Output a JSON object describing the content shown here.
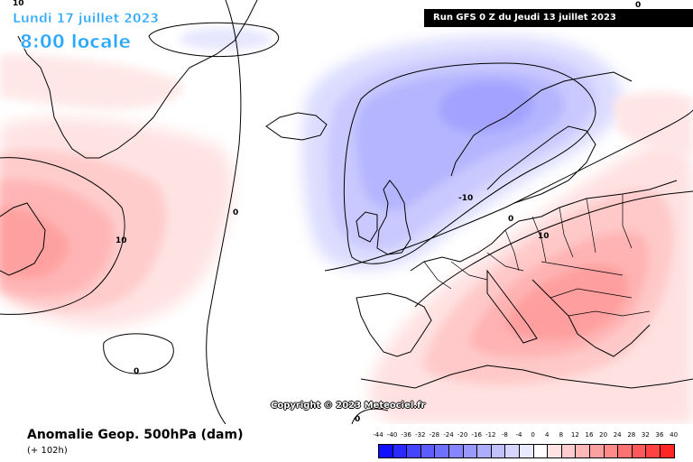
{
  "header": {
    "date_line": "Lundi 17 juillet 2023",
    "time_line": "8:00 locale",
    "run_info": "Run GFS 0 Z du Jeudi 13 juillet 2023"
  },
  "footer": {
    "copyright": "Copyright © 2023 Meteociel.fr",
    "variable": "Anomalie Geop. 500hPa (dam)",
    "lead_time": "(+ 102h)"
  },
  "contour_labels": [
    "10",
    "0",
    "10",
    "-10",
    "0",
    "10",
    "0",
    "0",
    "0"
  ],
  "legend": {
    "labels": [
      "-44",
      "-40",
      "-36",
      "-32",
      "-28",
      "-24",
      "-20",
      "-16",
      "-12",
      "-8",
      "-4",
      "0",
      "4",
      "8",
      "12",
      "16",
      "20",
      "24",
      "28",
      "32",
      "36",
      "40"
    ],
    "colors": [
      "#1010ff",
      "#2a2aff",
      "#4545ff",
      "#5c5cff",
      "#7070ff",
      "#8585ff",
      "#9999ff",
      "#adadff",
      "#c1c1ff",
      "#d5d5ff",
      "#e9e9ff",
      "#ffffff",
      "#ffe3e3",
      "#ffcdcd",
      "#ffb7b7",
      "#ffa0a0",
      "#ff8a8a",
      "#ff7272",
      "#ff5a5a",
      "#ff4242",
      "#ff2626"
    ]
  }
}
